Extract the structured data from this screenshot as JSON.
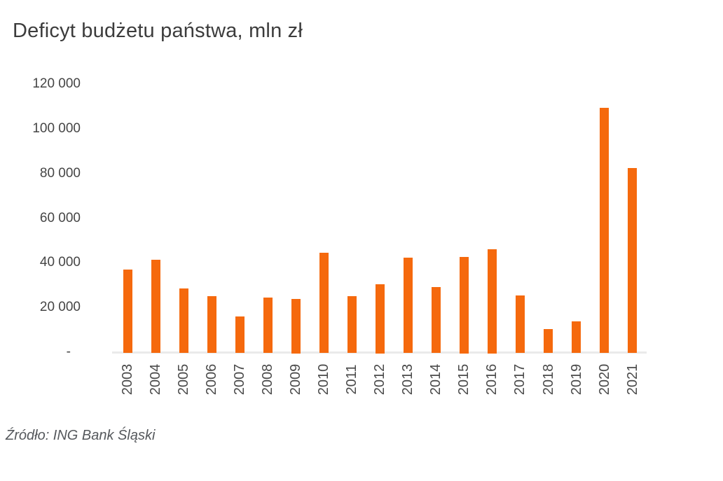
{
  "title": "Deficyt budżetu państwa, mln zł",
  "source": "Źródło: ING Bank Śląski",
  "chart_data": {
    "type": "bar",
    "title": "Deficyt budżetu państwa, mln zł",
    "categories": [
      "2003",
      "2004",
      "2005",
      "2006",
      "2007",
      "2008",
      "2009",
      "2010",
      "2011",
      "2012",
      "2013",
      "2014",
      "2015",
      "2016",
      "2017",
      "2018",
      "2019",
      "2020",
      "2021"
    ],
    "values": [
      37000,
      41400,
      28400,
      25100,
      16000,
      24300,
      23800,
      44600,
      25100,
      30400,
      42200,
      29000,
      42600,
      46200,
      25400,
      10400,
      13700,
      109300,
      82300
    ],
    "xlabel": "",
    "ylabel": "",
    "ylim": [
      0,
      120000
    ],
    "ytick_step": 20000,
    "yticks": [
      {
        "value": 120000,
        "label": "120 000"
      },
      {
        "value": 100000,
        "label": "100 000"
      },
      {
        "value": 80000,
        "label": "80 000"
      },
      {
        "value": 60000,
        "label": "60 000"
      },
      {
        "value": 40000,
        "label": "40 000"
      },
      {
        "value": 20000,
        "label": "20 000"
      },
      {
        "value": 0,
        "label": "-"
      }
    ],
    "grid": false,
    "legend": null,
    "x_tick_rotation_deg": 90,
    "annotation": "Source caption below chart"
  },
  "colors": {
    "bar": "#f5690d",
    "title_text": "#3c3c3c",
    "ytick_text": "#454545",
    "xtick_text": "#4a4a4a",
    "source_text": "#55585c",
    "axis_line": "#eaeaea",
    "background": "#ffffff"
  }
}
